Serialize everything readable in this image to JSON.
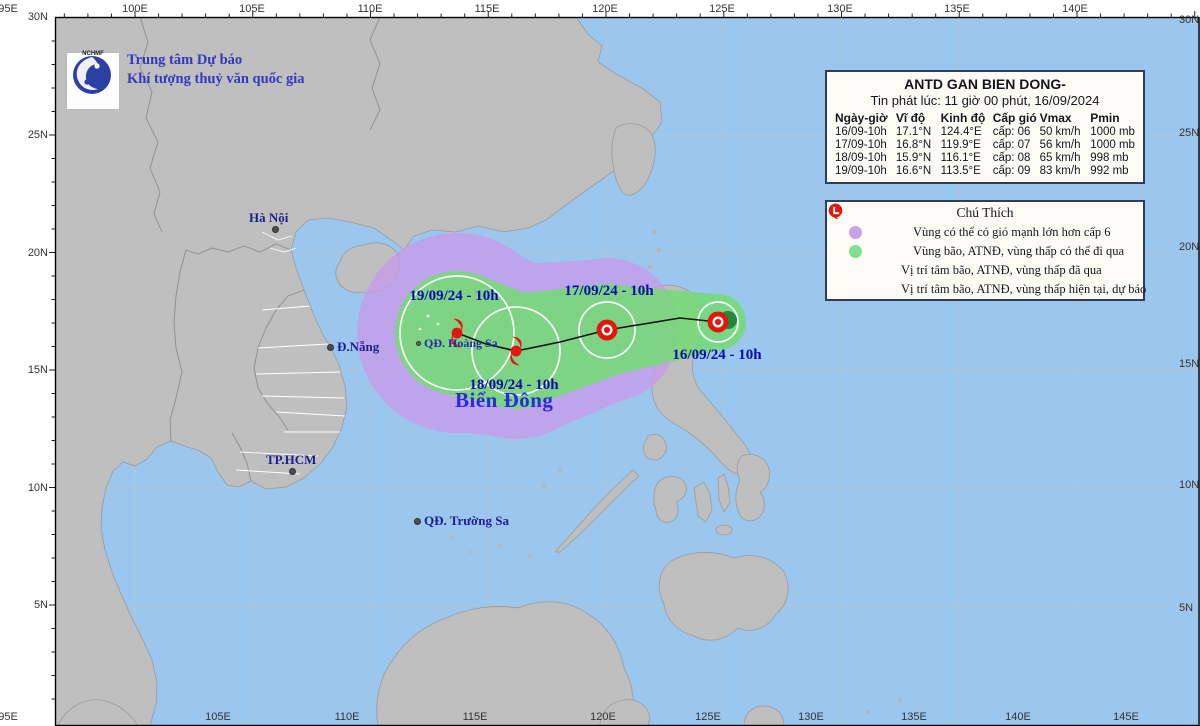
{
  "org": {
    "line1": "Trung tâm Dự báo",
    "line2": "Khí tượng thuỷ văn quốc gia",
    "logo_caption": "NCHMF"
  },
  "info_box": {
    "title": "ANTD GAN BIEN DONG-",
    "issued": "Tin phát lúc: 11 giờ 00 phút, 16/09/2024",
    "columns": [
      "Ngày-giờ",
      "Vĩ độ",
      "Kinh độ",
      "Cấp gió",
      "Vmax",
      "Pmin"
    ],
    "rows": [
      [
        "16/09-10h",
        "17.1°N",
        "124.4°E",
        "cấp: 06",
        "50 km/h",
        "1000 mb"
      ],
      [
        "17/09-10h",
        "16.8°N",
        "119.9°E",
        "cấp: 07",
        "56 km/h",
        "1000 mb"
      ],
      [
        "18/09-10h",
        "15.9°N",
        "116.1°E",
        "cấp: 08",
        "65 km/h",
        "998 mb"
      ],
      [
        "19/09-10h",
        "16.6°N",
        "113.5°E",
        "cấp: 09",
        "83 km/h",
        "992 mb"
      ]
    ]
  },
  "legend": {
    "title": "Chú Thích",
    "items": [
      {
        "swatch": "purple-circle",
        "label": "Vùng có thể có gió mạnh lớn hơn cấp 6"
      },
      {
        "swatch": "green-circle",
        "label": "Vùng bão, ATNĐ, vùng thấp có thể đi qua"
      },
      {
        "swatch": "black-symbols",
        "label": "Vị trí tâm bão, ATNĐ, vùng thấp đã qua"
      },
      {
        "swatch": "red-symbols",
        "label": "Vị trí tâm bão, ATNĐ, vùng thấp hiện tại, dự báo"
      }
    ]
  },
  "map": {
    "sea_label": "Biển Đông",
    "cities": [
      {
        "name": "Hà Nội"
      },
      {
        "name": "Đ.Nẵng"
      },
      {
        "name": "TP.HCM"
      },
      {
        "name": "QĐ. Hoàng Sa"
      },
      {
        "name": "QĐ. Trường Sa"
      }
    ],
    "track_labels": [
      "16/09/24 - 10h",
      "17/09/24 - 10h",
      "18/09/24 - 10h",
      "19/09/24 - 10h"
    ]
  },
  "axes": {
    "top": [
      "95E",
      "100E",
      "105E",
      "110E",
      "115E",
      "120E",
      "125E",
      "130E",
      "135E",
      "140E"
    ],
    "bottom": [
      "95E",
      "105E",
      "110E",
      "115E",
      "120E",
      "125E",
      "130E",
      "135E",
      "140E",
      "145E"
    ],
    "left": [
      "30N",
      "25N",
      "20N",
      "15N",
      "10N",
      "5N"
    ],
    "right": [
      "30N",
      "25N",
      "20N",
      "15N",
      "10N",
      "5N"
    ]
  },
  "colors": {
    "sea": "#9BC7EF",
    "land": "#BFBFBF",
    "wind_cone": "#C79BEA",
    "track_cone": "#74DC74",
    "storm_red": "#E3170D",
    "past_marker_green": "#1F8A3D",
    "label_blue": "#0A0AA8"
  }
}
